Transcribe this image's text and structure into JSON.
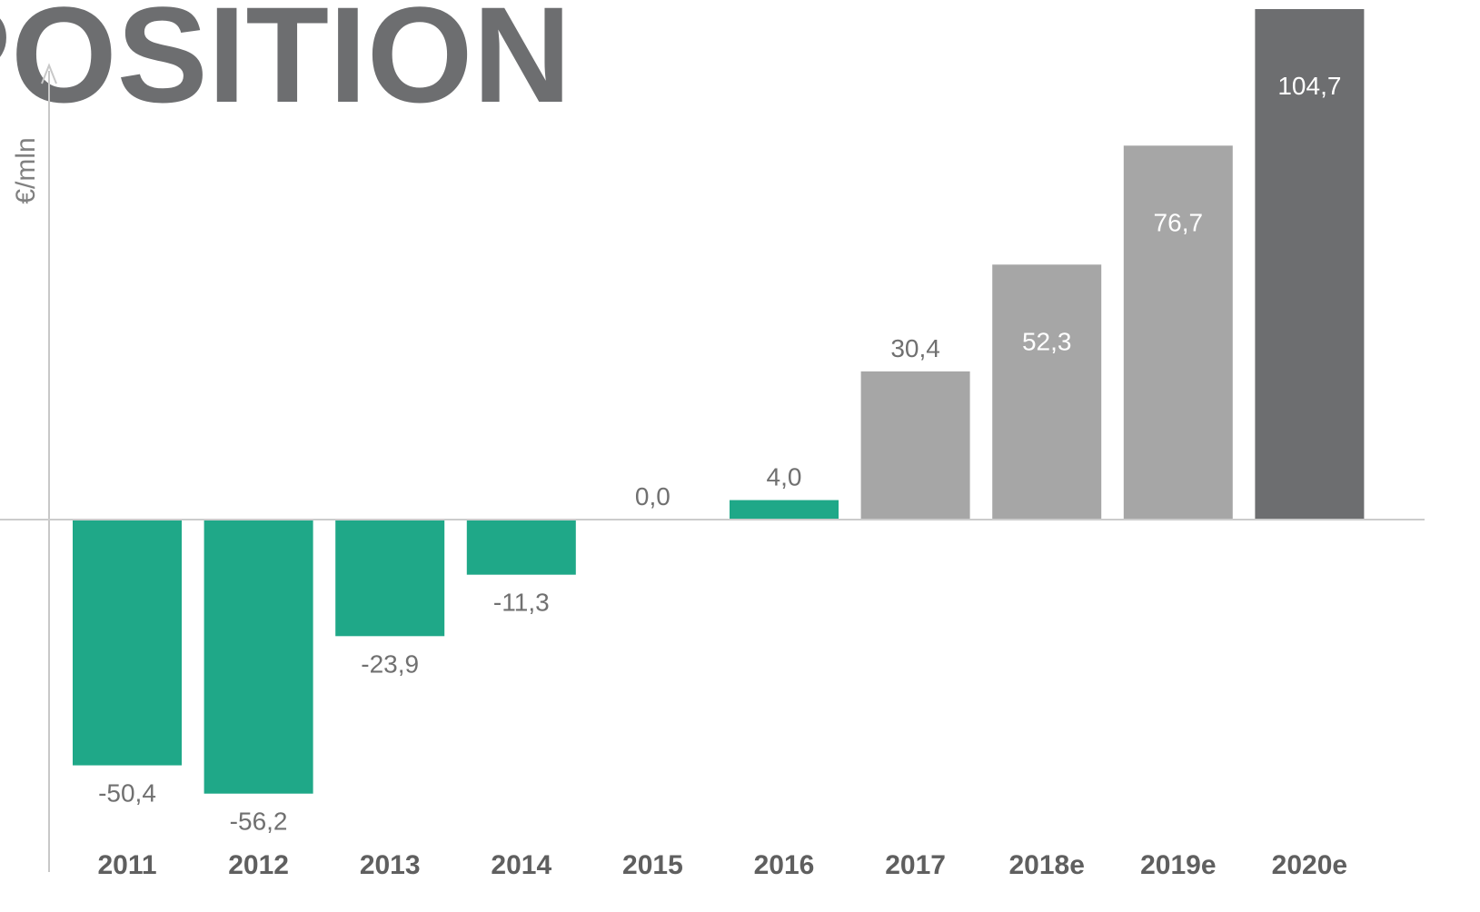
{
  "chart_data": {
    "type": "bar",
    "title": "POSITION",
    "y_axis_label": "€/mln",
    "categories": [
      "2011",
      "2012",
      "2013",
      "2014",
      "2015",
      "2016",
      "2017",
      "2018e",
      "2019e",
      "2020e"
    ],
    "values": [
      -50.4,
      -56.2,
      -23.9,
      -11.3,
      0.0,
      4.0,
      30.4,
      52.3,
      76.7,
      104.7
    ],
    "value_labels": [
      "-50,4",
      "-56,2",
      "-23,9",
      "-11,3",
      "0,0",
      "4,0",
      "30,4",
      "52,3",
      "76,7",
      "104,7"
    ],
    "colors": [
      "#1fa888",
      "#1fa888",
      "#1fa888",
      "#1fa888",
      "#1fa888",
      "#1fa888",
      "#a6a6a6",
      "#a6a6a6",
      "#a6a6a6",
      "#6d6e70"
    ],
    "ylim": [
      -72,
      105
    ]
  }
}
